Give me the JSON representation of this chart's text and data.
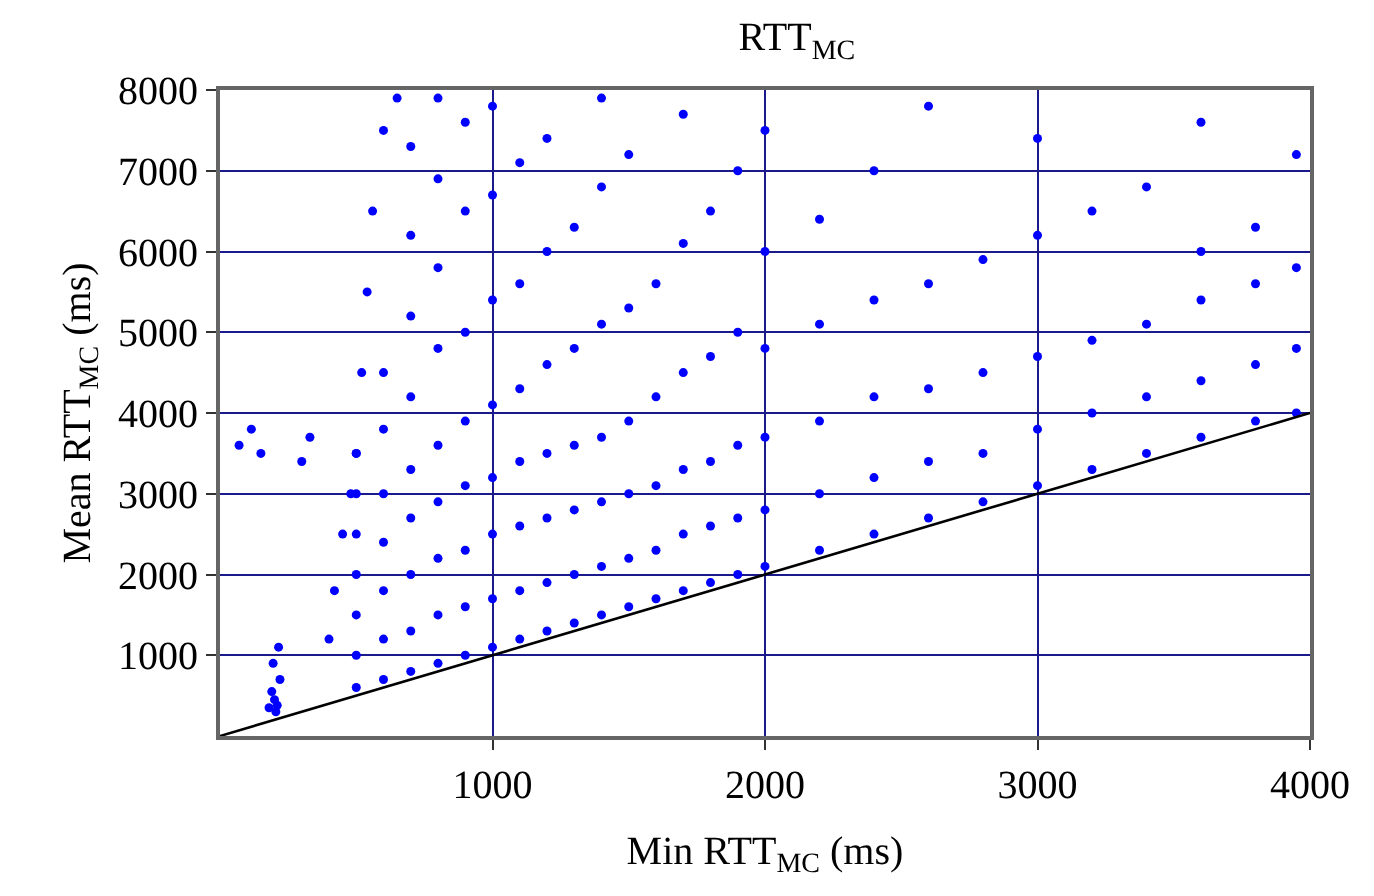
{
  "chart_data": {
    "type": "scatter",
    "title": "RTT$_{MC}$",
    "xlabel": "Min RTT$_{MC}$ (ms)",
    "ylabel": "Mean RTT$_{MC}$ (ms)",
    "xlim": [
      0,
      4000
    ],
    "ylim": [
      0,
      8000
    ],
    "xticks": [
      1000,
      2000,
      3000,
      4000
    ],
    "yticks": [
      1000,
      2000,
      3000,
      4000,
      5000,
      6000,
      7000,
      8000
    ],
    "grid": true,
    "legend": false,
    "marker": "circle",
    "series": [
      {
        "color": "#0000ff",
        "x": [
          180,
          200,
          210,
          190,
          220,
          205,
          195,
          215,
          70,
          115,
          150,
          300,
          330,
          400,
          420,
          450,
          480,
          500,
          520,
          540,
          560,
          600,
          650,
          500,
          500,
          500,
          500,
          500,
          500,
          500,
          600,
          600,
          600,
          600,
          600,
          600,
          600,
          700,
          700,
          700,
          700,
          700,
          700,
          700,
          700,
          700,
          800,
          800,
          800,
          800,
          800,
          800,
          800,
          800,
          800,
          900,
          900,
          900,
          900,
          900,
          900,
          900,
          900,
          1000,
          1000,
          1000,
          1000,
          1000,
          1000,
          1000,
          1000,
          1100,
          1100,
          1100,
          1100,
          1100,
          1100,
          1100,
          1200,
          1200,
          1200,
          1200,
          1200,
          1200,
          1200,
          1300,
          1300,
          1300,
          1300,
          1300,
          1300,
          1400,
          1400,
          1400,
          1400,
          1400,
          1400,
          1400,
          1500,
          1500,
          1500,
          1500,
          1500,
          1500,
          1600,
          1600,
          1600,
          1600,
          1600,
          1700,
          1700,
          1700,
          1700,
          1700,
          1700,
          1800,
          1800,
          1800,
          1800,
          1800,
          1900,
          1900,
          1900,
          1900,
          1900,
          2000,
          2000,
          2000,
          2000,
          2000,
          2000,
          2200,
          2200,
          2200,
          2200,
          2200,
          2400,
          2400,
          2400,
          2400,
          2400,
          2600,
          2600,
          2600,
          2600,
          2600,
          2800,
          2800,
          2800,
          2800,
          3000,
          3000,
          3000,
          3000,
          3000,
          3200,
          3200,
          3200,
          3200,
          3400,
          3400,
          3400,
          3400,
          3600,
          3600,
          3600,
          3600,
          3600,
          3800,
          3800,
          3800,
          3800,
          3950,
          3950,
          3950,
          3950
        ],
        "values": [
          350,
          450,
          380,
          550,
          700,
          300,
          900,
          1100,
          3600,
          3800,
          3500,
          3400,
          3700,
          1200,
          1800,
          2500,
          3000,
          3500,
          4500,
          5500,
          6500,
          7500,
          7900,
          600,
          1000,
          1500,
          2000,
          2500,
          3000,
          3500,
          700,
          1200,
          1800,
          2400,
          3000,
          3800,
          4500,
          800,
          1300,
          2000,
          2700,
          3300,
          4200,
          5200,
          6200,
          7300,
          900,
          1500,
          2200,
          2900,
          3600,
          4800,
          5800,
          6900,
          7900,
          1000,
          1600,
          2300,
          3100,
          3900,
          5000,
          6500,
          7600,
          1100,
          1700,
          2500,
          3200,
          4100,
          5400,
          6700,
          7800,
          1200,
          1800,
          2600,
          3400,
          4300,
          5600,
          7100,
          1300,
          1900,
          2700,
          3500,
          4600,
          6000,
          7400,
          1400,
          2000,
          2800,
          3600,
          4800,
          6300,
          1500,
          2100,
          2900,
          3700,
          5100,
          6800,
          7900,
          1600,
          2200,
          3000,
          3900,
          5300,
          7200,
          1700,
          2300,
          3100,
          4200,
          5600,
          1800,
          2500,
          3300,
          4500,
          6100,
          7700,
          1900,
          2600,
          3400,
          4700,
          6500,
          2000,
          2700,
          3600,
          5000,
          7000,
          2100,
          2800,
          3700,
          4800,
          6000,
          7500,
          2300,
          3000,
          3900,
          5100,
          6400,
          2500,
          3200,
          4200,
          5400,
          7000,
          2700,
          3400,
          4300,
          5600,
          7800,
          2900,
          3500,
          4500,
          5900,
          3100,
          3800,
          4700,
          6200,
          7400,
          3300,
          4000,
          4900,
          6500,
          3500,
          4200,
          5100,
          6800,
          3700,
          4400,
          5400,
          6000,
          7600,
          3900,
          4600,
          5600,
          6300,
          4000,
          4800,
          5800,
          7200
        ]
      },
      {
        "type": "line",
        "color": "#000000",
        "marker": "none",
        "line_style": "solid",
        "x": [
          0,
          4000
        ],
        "values": [
          0,
          4000
        ]
      }
    ]
  }
}
